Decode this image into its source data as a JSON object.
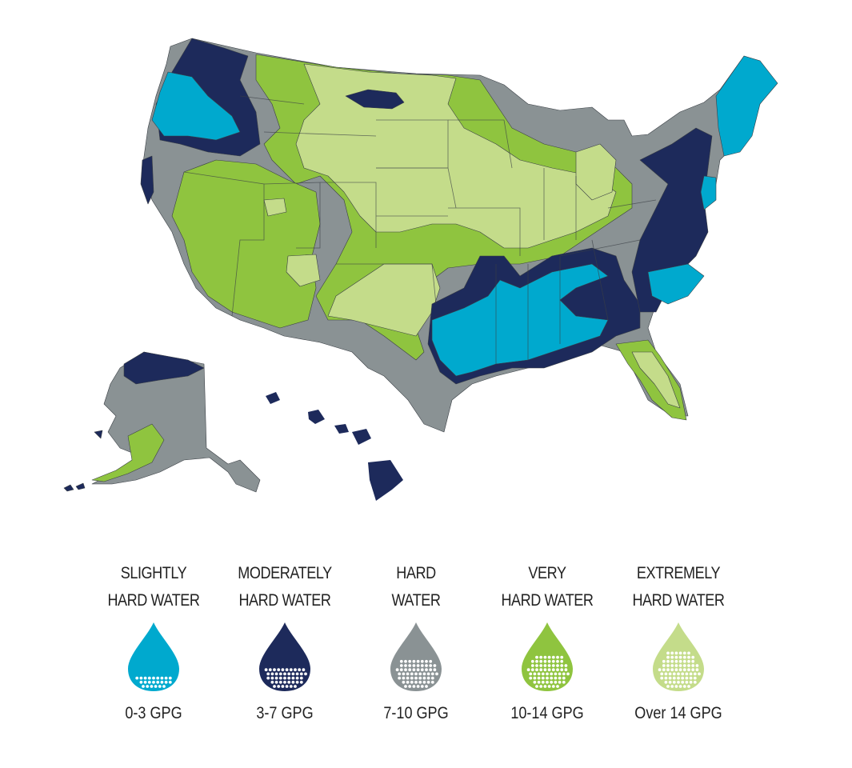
{
  "legend": {
    "items": [
      {
        "line1": "SLIGHTLY",
        "line2": "HARD WATER",
        "range": "0-3 GPG",
        "color": "#00a9ce",
        "dots": "#ffffff"
      },
      {
        "line1": "MODERATELY",
        "line2": "HARD WATER",
        "range": "3-7 GPG",
        "color": "#1d2a5b",
        "dots": "#ffffff"
      },
      {
        "line1": "HARD",
        "line2": "WATER",
        "range": "7-10 GPG",
        "color": "#8a9294",
        "dots": "#ffffff"
      },
      {
        "line1": "VERY",
        "line2": "HARD WATER",
        "range": "10-14 GPG",
        "color": "#8fc43f",
        "dots": "#ffffff"
      },
      {
        "line1": "EXTREMELY",
        "line2": "HARD WATER",
        "range": "Over 14 GPG",
        "color": "#c4dc8a",
        "dots": "#ffffff"
      }
    ]
  },
  "map": {
    "colors": {
      "slightly": "#00a9ce",
      "moderately": "#1d2a5b",
      "hard": "#8a9294",
      "very": "#8fc43f",
      "extremely": "#c4dc8a",
      "border": "#3a3f45"
    }
  }
}
